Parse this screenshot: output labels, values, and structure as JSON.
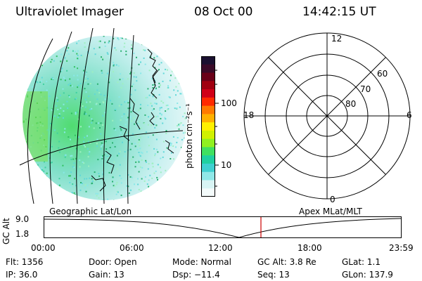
{
  "header": {
    "instrument": "Ultraviolet Imager",
    "date": "08 Oct 00",
    "time": "14:42:15 UT"
  },
  "colorbar": {
    "unit_label": "photon cm⁻²s⁻¹",
    "ticks": [
      "100",
      "10"
    ],
    "colors_top_to_bottom": [
      "#1a1030",
      "#3a0a28",
      "#6a0018",
      "#a00010",
      "#d00018",
      "#ff2a00",
      "#ff7a00",
      "#ffb000",
      "#fff000",
      "#d0f000",
      "#90f020",
      "#40e060",
      "#20d0a0",
      "#40d0d0",
      "#90e8e8",
      "#d8f4f4",
      "#f4fbfb"
    ]
  },
  "panels": {
    "left_caption": "Geographic Lat/Lon",
    "right_caption": "Apex MLat/MLT"
  },
  "polar": {
    "mlt_labels": [
      "12",
      "18",
      "6",
      "0"
    ],
    "lat_labels": [
      "60",
      "70",
      "80"
    ]
  },
  "altitude_plot": {
    "ylabel": "GC Alt",
    "yticks": [
      "9.0",
      "1.8"
    ],
    "xticks": [
      "00:00",
      "06:00",
      "12:00",
      "18:00",
      "23:59"
    ],
    "marker_color": "#cc0000"
  },
  "info": {
    "flt": "Flt: 1356",
    "ip": "IP: 36.0",
    "door": "Door: Open",
    "gain": "Gain: 13",
    "mode": "Mode: Normal",
    "dsp": "Dsp:  −11.4",
    "gcalt": "GC Alt: 3.8 Re",
    "seq": "Seq: 13",
    "glat": "GLat:    1.1",
    "glon": "GLon: 137.9"
  }
}
